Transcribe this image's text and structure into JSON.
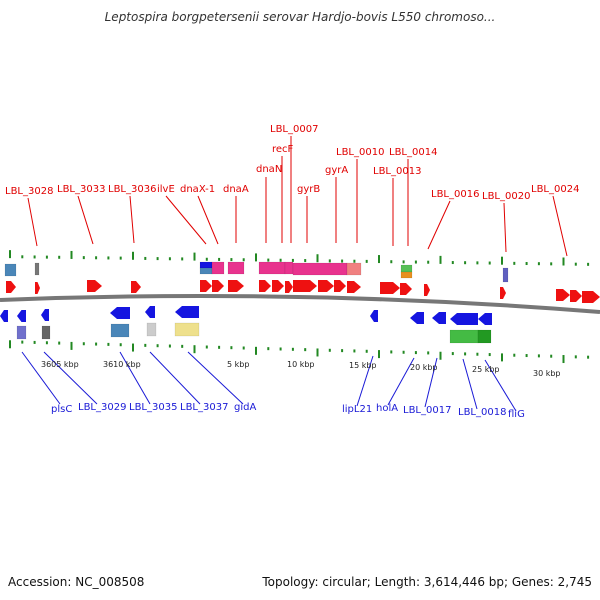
{
  "title": "Leptospira borgpetersenii serovar Hardjo-bovis L550 chromoso...",
  "footer": {
    "accession": "Accession: NC_008508",
    "topology": "Topology: circular; Length: 3,614,446 bp; Genes: 2,745"
  },
  "colors": {
    "forward_gene": "#ee1111",
    "reverse_gene": "#1515e0",
    "forward_label": "#e00000",
    "reverse_label": "#1a1ad6",
    "tick": "#228822",
    "backbone": "#777777"
  },
  "scale_labels": [
    "3605 kbp",
    "3610 kbp",
    "5 kbp",
    "10 kbp",
    "15 kbp",
    "20 kbp",
    "25 kbp",
    "30 kbp"
  ],
  "top_genes": [
    "LBL_3028",
    "LBL_3033",
    "LBL_3036",
    "ilvE",
    "dnaX-1",
    "dnaA",
    "dnaN",
    "recF",
    "LBL_0007",
    "gyrB",
    "gyrA",
    "LBL_0010",
    "LBL_0013",
    "LBL_0014",
    "LBL_0016",
    "LBL_0020",
    "LBL_0024"
  ],
  "bottom_genes": [
    "plsC",
    "LBL_3029",
    "LBL_3035",
    "LBL_3037",
    "gidA",
    "lipL21",
    "holA",
    "LBL_0017",
    "LBL_0018",
    "fliG"
  ]
}
